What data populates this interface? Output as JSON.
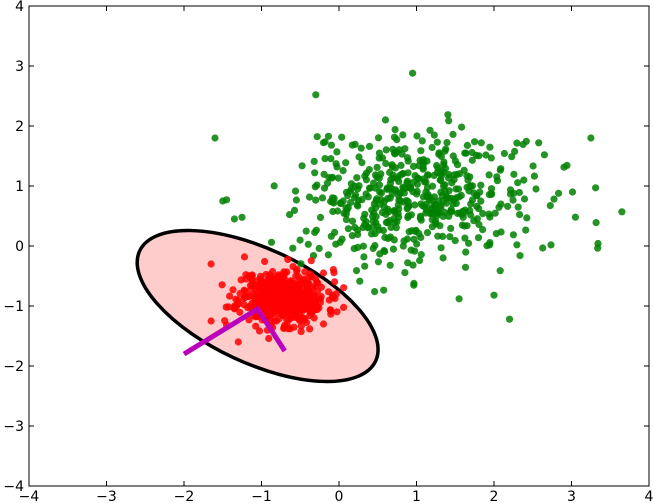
{
  "chart_data": {
    "type": "scatter",
    "title": "",
    "xlabel": "",
    "ylabel": "",
    "xlim": [
      -4,
      4
    ],
    "ylim": [
      -4,
      4
    ],
    "x_ticks": [
      -4,
      -3,
      -2,
      -1,
      0,
      1,
      2,
      3,
      4
    ],
    "y_ticks": [
      -4,
      -3,
      -2,
      -1,
      0,
      1,
      2,
      3,
      4
    ],
    "x_tick_labels": [
      "−4",
      "−3",
      "−2",
      "−1",
      "0",
      "1",
      "2",
      "3",
      "4"
    ],
    "y_tick_labels": [
      "−4",
      "−3",
      "−2",
      "−1",
      "0",
      "1",
      "2",
      "3",
      "4"
    ],
    "grid": false,
    "ellipse": {
      "center": [
        -1.05,
        -1.0
      ],
      "semi_axes": [
        1.68,
        0.95
      ],
      "angle_deg": -25,
      "fill": "#ffcccc",
      "stroke": "#000000"
    },
    "principal_axes": {
      "color": "#bb00bb",
      "points": [
        [
          -2.0,
          -1.8
        ],
        [
          -1.05,
          -1.05
        ],
        [
          -0.7,
          -1.75
        ]
      ]
    },
    "series": [
      {
        "color": "#008000",
        "center": [
          1.0,
          0.8
        ],
        "std": [
          0.75,
          0.55
        ],
        "count": 520,
        "seed": 7,
        "outliers": [
          [
            -1.6,
            1.8
          ],
          [
            -1.5,
            0.75
          ],
          [
            -1.45,
            0.77
          ],
          [
            -1.35,
            0.45
          ],
          [
            2.2,
            -1.22
          ],
          [
            3.05,
            0.48
          ],
          [
            3.65,
            0.57
          ],
          [
            3.25,
            1.8
          ],
          [
            0.95,
            2.88
          ],
          [
            -0.3,
            2.52
          ],
          [
            2.65,
            1.52
          ],
          [
            1.55,
            -0.88
          ],
          [
            2.0,
            -0.82
          ]
        ]
      },
      {
        "color": "#ff0000",
        "center": [
          -0.72,
          -0.85
        ],
        "std": [
          0.28,
          0.23
        ],
        "count": 500,
        "seed": 11,
        "outliers": [
          [
            -1.65,
            -0.3
          ],
          [
            -1.65,
            -1.25
          ],
          [
            -1.45,
            -1.32
          ],
          [
            -1.3,
            -1.6
          ],
          [
            -0.2,
            -0.45
          ],
          [
            -0.2,
            -1.3
          ],
          [
            -1.2,
            -0.55
          ]
        ]
      }
    ]
  }
}
